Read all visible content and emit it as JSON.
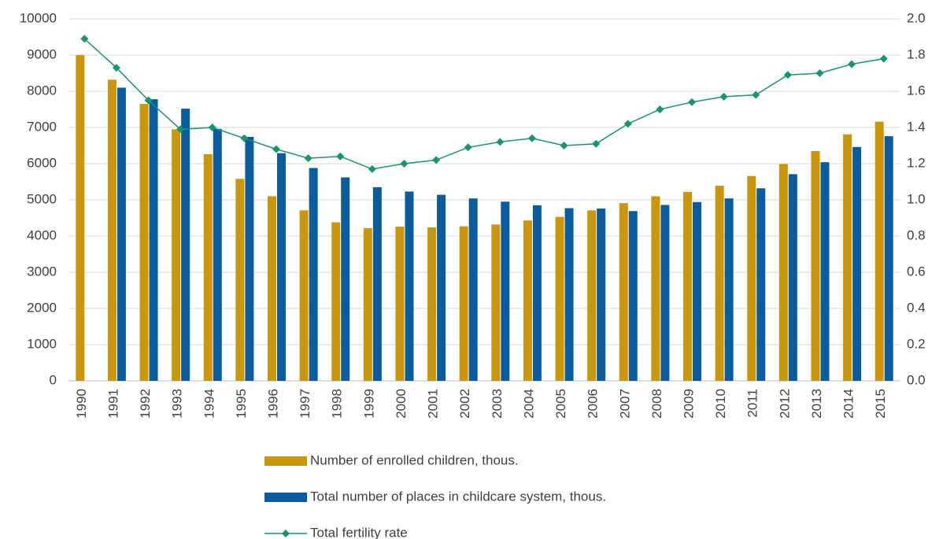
{
  "chart_data": {
    "type": "bar_line",
    "categories": [
      "1990",
      "1991",
      "1992",
      "1993",
      "1994",
      "1995",
      "1996",
      "1997",
      "1998",
      "1999",
      "2000",
      "2001",
      "2002",
      "2003",
      "2004",
      "2005",
      "2006",
      "2007",
      "2008",
      "2009",
      "2010",
      "2011",
      "2012",
      "2013",
      "2014",
      "2015"
    ],
    "series": [
      {
        "name": "Number of enrolled children, thous.",
        "type": "bar",
        "color": "#c9960c",
        "values": [
          9000,
          8320,
          7650,
          6950,
          6260,
          5580,
          5100,
          4710,
          4380,
          4220,
          4260,
          4240,
          4270,
          4320,
          4430,
          4530,
          4710,
          4910,
          5100,
          5220,
          5390,
          5660,
          5990,
          6350,
          6810,
          7160
        ]
      },
      {
        "name": "Total number of places in childcare system, thous.",
        "type": "bar",
        "color": "#0b5c9e",
        "values": [
          null,
          8100,
          7780,
          7520,
          6960,
          6740,
          6290,
          5880,
          5620,
          5350,
          5230,
          5140,
          5040,
          4950,
          4850,
          4770,
          4760,
          4690,
          4860,
          4940,
          5040,
          5320,
          5710,
          6040,
          6460,
          6760
        ]
      },
      {
        "name": "Total fertility rate",
        "type": "line",
        "axis": "y2",
        "color": "#16956f",
        "values": [
          1.89,
          1.73,
          1.55,
          1.39,
          1.4,
          1.34,
          1.28,
          1.23,
          1.24,
          1.17,
          1.2,
          1.22,
          1.29,
          1.32,
          1.34,
          1.3,
          1.31,
          1.42,
          1.5,
          1.54,
          1.57,
          1.58,
          1.69,
          1.7,
          1.75,
          1.78
        ]
      }
    ],
    "ylim": [
      0,
      10000
    ],
    "yticks": [
      0,
      1000,
      2000,
      3000,
      4000,
      5000,
      6000,
      7000,
      8000,
      9000,
      10000
    ],
    "y2lim": [
      0,
      2.0
    ],
    "y2ticks": [
      {
        "value": 0,
        "label": "0.0"
      },
      {
        "value": 0.2,
        "label": "0.2"
      },
      {
        "value": 0.4,
        "label": "0.4"
      },
      {
        "value": 0.6,
        "label": "0.6"
      },
      {
        "value": 0.8,
        "label": "0.8"
      },
      {
        "value": 1.0,
        "label": "1.0"
      },
      {
        "value": 1.2,
        "label": "1.2"
      },
      {
        "value": 1.4,
        "label": "1.4"
      },
      {
        "value": 1.6,
        "label": "1.6"
      },
      {
        "value": 1.8,
        "label": "1.8"
      },
      {
        "value": 2.0,
        "label": "2.0"
      }
    ],
    "grid": true,
    "legend": "bottom"
  }
}
